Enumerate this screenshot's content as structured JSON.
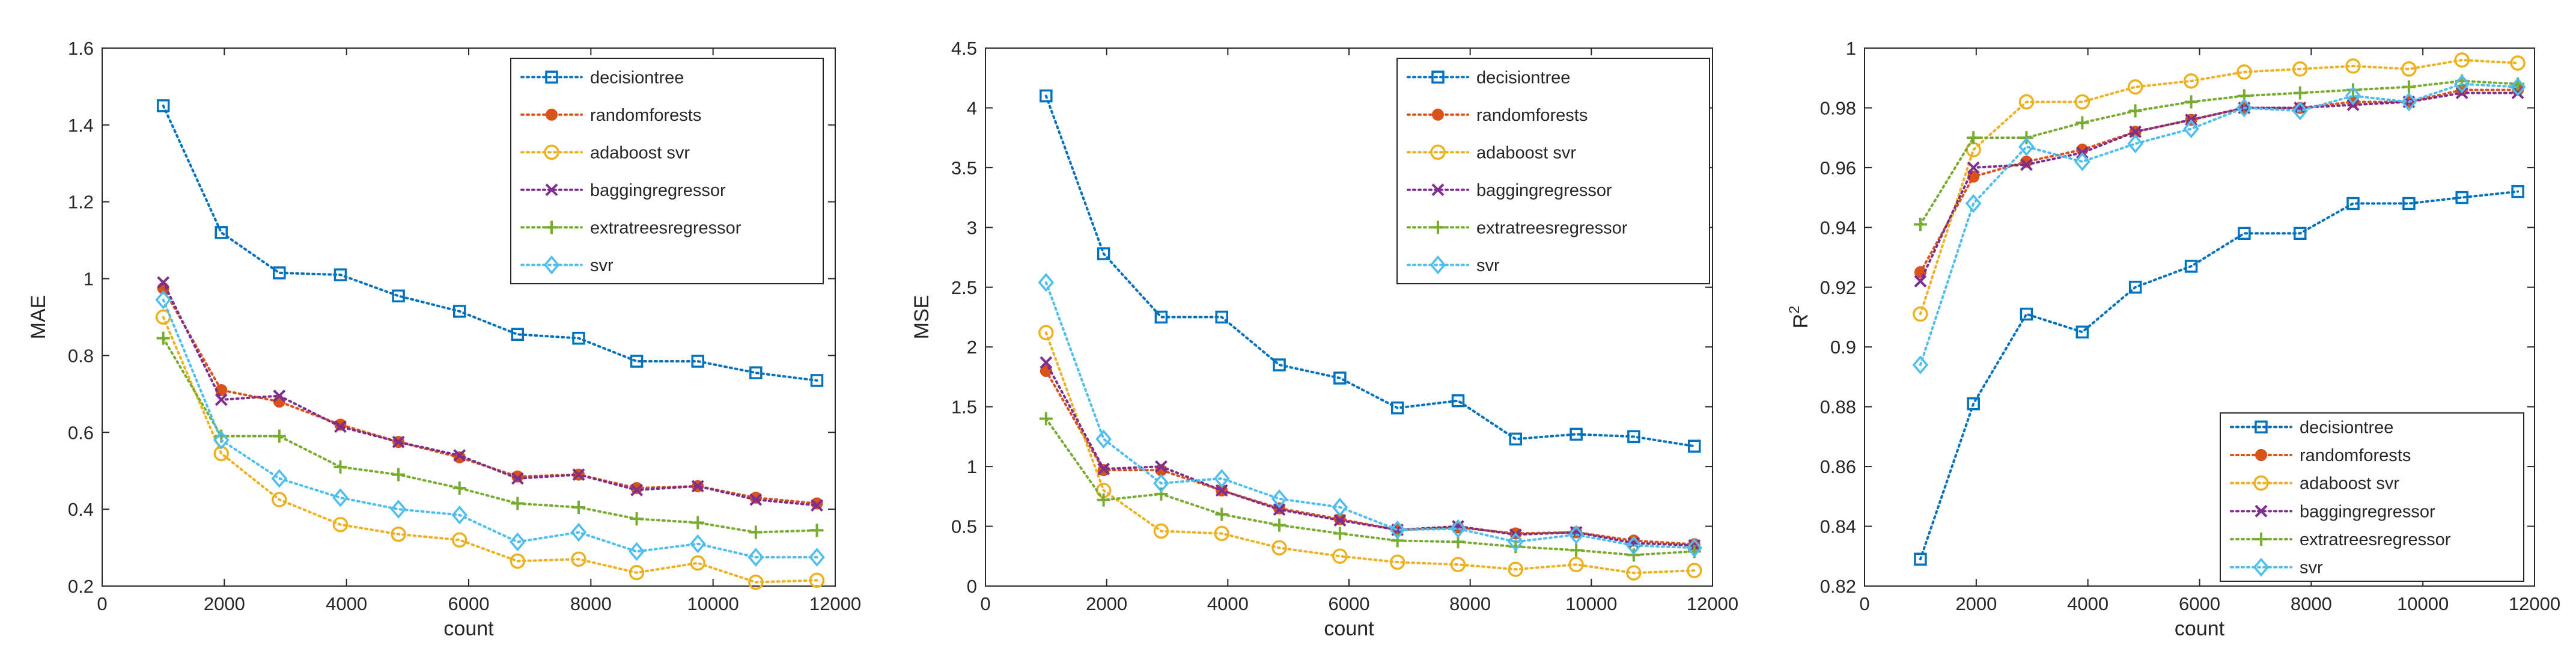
{
  "chart_data": [
    {
      "type": "line",
      "xlabel": "count",
      "ylabel": "MAE",
      "ylabel_sup": "",
      "xlim": [
        0,
        12000
      ],
      "ylim": [
        0.2,
        1.6
      ],
      "xticks": [
        0,
        2000,
        4000,
        6000,
        8000,
        10000,
        12000
      ],
      "xtick_labels": [
        "0",
        "2000",
        "4000",
        "6000",
        "8000",
        "10000",
        "12000"
      ],
      "yticks": [
        0.2,
        0.4,
        0.6,
        0.8,
        1.0,
        1.2,
        1.4,
        1.6
      ],
      "ytick_labels": [
        "0.2",
        "0.4",
        "0.6",
        "0.8",
        "1",
        "1.2",
        "1.4",
        "1.6"
      ],
      "legend_position": "top-right",
      "x": [
        1000,
        1950,
        2900,
        3900,
        4850,
        5850,
        6800,
        7800,
        8750,
        9750,
        10700,
        11700
      ],
      "series": [
        {
          "name": "decisiontree",
          "values": [
            1.45,
            1.12,
            1.015,
            1.01,
            0.955,
            0.915,
            0.855,
            0.845,
            0.785,
            0.785,
            0.755,
            0.735
          ]
        },
        {
          "name": "randomforests",
          "values": [
            0.975,
            0.71,
            0.68,
            0.62,
            0.575,
            0.535,
            0.485,
            0.49,
            0.455,
            0.46,
            0.43,
            0.415
          ]
        },
        {
          "name": "adaboost svr",
          "values": [
            0.9,
            0.545,
            0.425,
            0.36,
            0.335,
            0.32,
            0.265,
            0.27,
            0.235,
            0.26,
            0.21,
            0.215
          ]
        },
        {
          "name": "baggingregressor",
          "values": [
            0.99,
            0.685,
            0.695,
            0.615,
            0.575,
            0.54,
            0.48,
            0.49,
            0.45,
            0.46,
            0.425,
            0.41
          ]
        },
        {
          "name": "extratreesregressor",
          "values": [
            0.845,
            0.59,
            0.59,
            0.51,
            0.49,
            0.455,
            0.415,
            0.405,
            0.375,
            0.365,
            0.34,
            0.345
          ]
        },
        {
          "name": "svr",
          "values": [
            0.945,
            0.58,
            0.48,
            0.43,
            0.4,
            0.385,
            0.315,
            0.34,
            0.29,
            0.31,
            0.275,
            0.275
          ]
        }
      ]
    },
    {
      "type": "line",
      "xlabel": "count",
      "ylabel": "MSE",
      "ylabel_sup": "",
      "xlim": [
        0,
        12000
      ],
      "ylim": [
        0,
        4.5
      ],
      "xticks": [
        0,
        2000,
        4000,
        6000,
        8000,
        10000,
        12000
      ],
      "xtick_labels": [
        "0",
        "2000",
        "4000",
        "6000",
        "8000",
        "10000",
        "12000"
      ],
      "yticks": [
        0,
        0.5,
        1,
        1.5,
        2,
        2.5,
        3,
        3.5,
        4,
        4.5
      ],
      "ytick_labels": [
        "0",
        "0.5",
        "1",
        "1.5",
        "2",
        "2.5",
        "3",
        "3.5",
        "4",
        "4.5"
      ],
      "legend_position": "top-right",
      "x": [
        1000,
        1950,
        2900,
        3900,
        4850,
        5850,
        6800,
        7800,
        8750,
        9750,
        10700,
        11700
      ],
      "series": [
        {
          "name": "decisiontree",
          "values": [
            4.1,
            2.78,
            2.25,
            2.25,
            1.85,
            1.74,
            1.49,
            1.55,
            1.23,
            1.27,
            1.25,
            1.17
          ]
        },
        {
          "name": "randomforests",
          "values": [
            1.8,
            0.97,
            0.97,
            0.8,
            0.65,
            0.56,
            0.47,
            0.49,
            0.44,
            0.45,
            0.38,
            0.35
          ]
        },
        {
          "name": "adaboost svr",
          "values": [
            2.12,
            0.8,
            0.46,
            0.44,
            0.32,
            0.25,
            0.2,
            0.18,
            0.14,
            0.18,
            0.11,
            0.13
          ]
        },
        {
          "name": "baggingregressor",
          "values": [
            1.87,
            0.98,
            1.0,
            0.8,
            0.64,
            0.55,
            0.47,
            0.5,
            0.43,
            0.45,
            0.36,
            0.34
          ]
        },
        {
          "name": "extratreesregressor",
          "values": [
            1.4,
            0.72,
            0.77,
            0.6,
            0.51,
            0.44,
            0.38,
            0.37,
            0.33,
            0.3,
            0.26,
            0.29
          ]
        },
        {
          "name": "svr",
          "values": [
            2.54,
            1.23,
            0.86,
            0.9,
            0.73,
            0.66,
            0.47,
            0.48,
            0.37,
            0.43,
            0.34,
            0.32
          ]
        }
      ]
    },
    {
      "type": "line",
      "xlabel": "count",
      "ylabel": "R",
      "ylabel_sup": "2",
      "xlim": [
        0,
        12000
      ],
      "ylim": [
        0.82,
        1.0
      ],
      "xticks": [
        0,
        2000,
        4000,
        6000,
        8000,
        10000,
        12000
      ],
      "xtick_labels": [
        "0",
        "2000",
        "4000",
        "6000",
        "8000",
        "10000",
        "12000"
      ],
      "yticks": [
        0.82,
        0.84,
        0.86,
        0.88,
        0.9,
        0.92,
        0.94,
        0.96,
        0.98,
        1.0
      ],
      "ytick_labels": [
        "0.82",
        "0.84",
        "0.86",
        "0.88",
        "0.9",
        "0.92",
        "0.94",
        "0.96",
        "0.98",
        "1"
      ],
      "legend_position": "bottom-right",
      "x": [
        1000,
        1950,
        2900,
        3900,
        4850,
        5850,
        6800,
        7800,
        8750,
        9750,
        10700,
        11700
      ],
      "series": [
        {
          "name": "decisiontree",
          "values": [
            0.829,
            0.881,
            0.911,
            0.905,
            0.92,
            0.927,
            0.938,
            0.938,
            0.948,
            0.948,
            0.95,
            0.952
          ]
        },
        {
          "name": "randomforests",
          "values": [
            0.925,
            0.957,
            0.962,
            0.966,
            0.972,
            0.976,
            0.98,
            0.98,
            0.982,
            0.982,
            0.986,
            0.986
          ]
        },
        {
          "name": "adaboost svr",
          "values": [
            0.911,
            0.966,
            0.982,
            0.982,
            0.987,
            0.989,
            0.992,
            0.993,
            0.994,
            0.993,
            0.996,
            0.995
          ]
        },
        {
          "name": "baggingregressor",
          "values": [
            0.922,
            0.96,
            0.961,
            0.965,
            0.972,
            0.976,
            0.98,
            0.98,
            0.981,
            0.982,
            0.985,
            0.985
          ]
        },
        {
          "name": "extratreesregressor",
          "values": [
            0.941,
            0.97,
            0.97,
            0.975,
            0.979,
            0.982,
            0.984,
            0.985,
            0.986,
            0.987,
            0.989,
            0.988
          ]
        },
        {
          "name": "svr",
          "values": [
            0.894,
            0.948,
            0.967,
            0.962,
            0.968,
            0.973,
            0.98,
            0.979,
            0.984,
            0.982,
            0.988,
            0.987
          ]
        }
      ]
    }
  ],
  "series_styles": [
    {
      "color": "#0072BD",
      "marker": "square"
    },
    {
      "color": "#D95319",
      "marker": "dot"
    },
    {
      "color": "#EDB120",
      "marker": "circle"
    },
    {
      "color": "#7E2F8E",
      "marker": "cross"
    },
    {
      "color": "#77AC30",
      "marker": "plus"
    },
    {
      "color": "#4DBEEE",
      "marker": "diamond"
    }
  ]
}
